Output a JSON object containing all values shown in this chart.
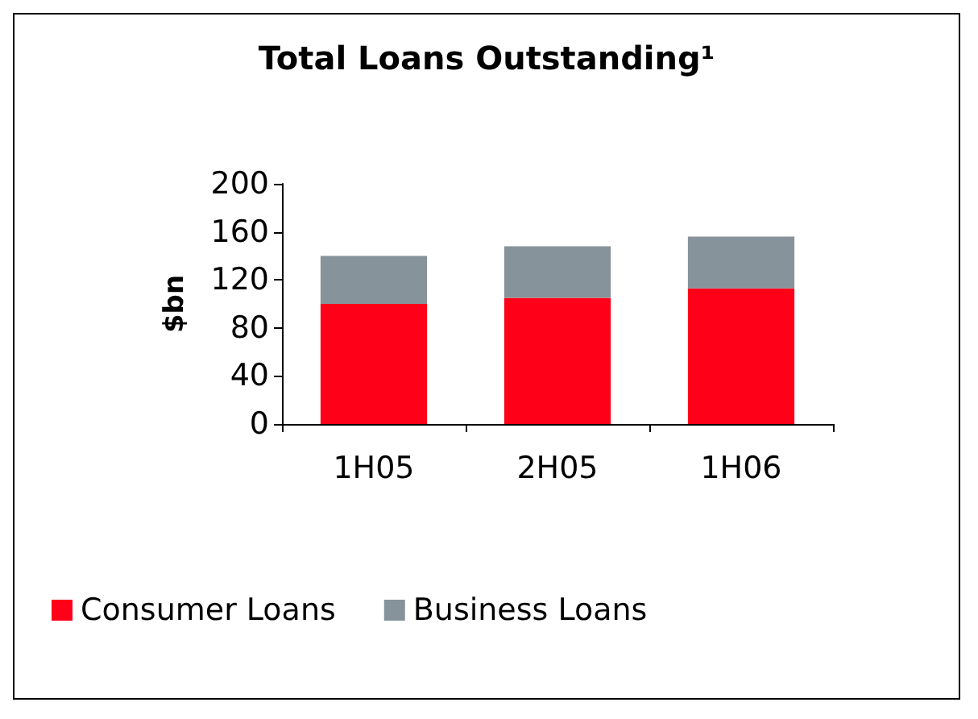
{
  "chart_data": {
    "type": "bar",
    "title": "Total Loans Outstanding¹",
    "ylabel": "$bn",
    "categories": [
      "1H05",
      "2H05",
      "1H06"
    ],
    "stacked": true,
    "series": [
      {
        "name": "Consumer Loans",
        "color": "#ff0019",
        "values": [
          100,
          105,
          113
        ]
      },
      {
        "name": "Business Loans",
        "color": "#87939a",
        "values": [
          40,
          43,
          43
        ]
      }
    ],
    "ylim": [
      0,
      200
    ],
    "yticks": [
      0,
      40,
      80,
      120,
      160,
      200
    ],
    "grid": false,
    "legend": "bottom left"
  }
}
